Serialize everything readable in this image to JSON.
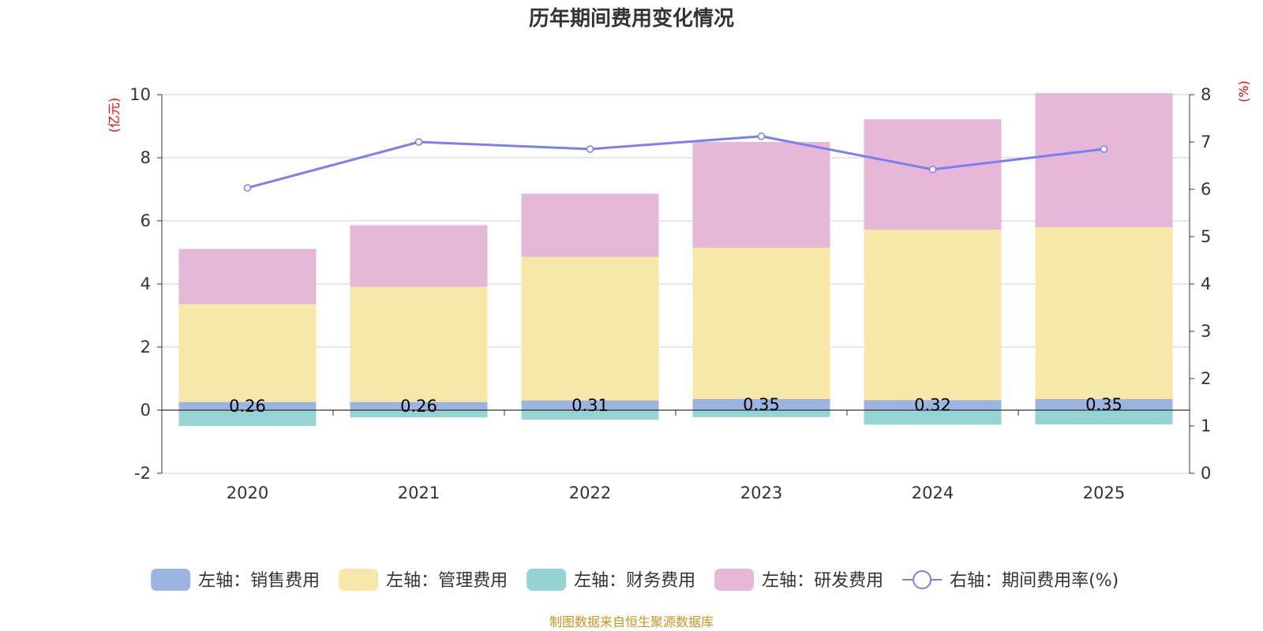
{
  "chart_data": {
    "type": "bar",
    "title": "历年期间费用变化情况",
    "categories": [
      "2020",
      "2021",
      "2022",
      "2023",
      "2024",
      "2025"
    ],
    "left_axis": {
      "unit": "(亿元)",
      "range": [
        -2,
        10
      ],
      "ticks": [
        "-2",
        "0",
        "2",
        "4",
        "6",
        "8",
        "10"
      ]
    },
    "right_axis": {
      "unit": "(%)",
      "range": [
        0,
        8
      ],
      "ticks": [
        "0",
        "1",
        "2",
        "3",
        "4",
        "5",
        "6",
        "7",
        "8"
      ]
    },
    "series": [
      {
        "name": "左轴：销售费用",
        "kind": "bar",
        "axis": "left",
        "color": "#9bb5e0",
        "values": [
          0.26,
          0.26,
          0.31,
          0.35,
          0.32,
          0.35
        ],
        "labels": [
          "0.26",
          "0.26",
          "0.31",
          "0.35",
          "0.32",
          "0.35"
        ]
      },
      {
        "name": "左轴：管理费用",
        "kind": "bar",
        "axis": "left",
        "color": "#f7e7a8",
        "values": [
          3.1,
          3.65,
          4.55,
          4.8,
          5.4,
          5.45
        ]
      },
      {
        "name": "左轴：财务费用",
        "kind": "bar",
        "axis": "left",
        "color": "#96d4d4",
        "values": [
          -0.5,
          -0.23,
          -0.3,
          -0.22,
          -0.46,
          -0.45
        ]
      },
      {
        "name": "左轴：研发费用",
        "kind": "bar",
        "axis": "left",
        "color": "#e6b8d8",
        "values": [
          1.75,
          1.95,
          2.0,
          3.35,
          3.5,
          4.25
        ]
      },
      {
        "name": "右轴：期间费用率(%)",
        "kind": "line",
        "axis": "right",
        "color": "#7b7ff0",
        "values": [
          6.03,
          7.0,
          6.85,
          7.12,
          6.42,
          6.85
        ]
      }
    ],
    "legend_position": "bottom",
    "grid": true
  },
  "footer": {
    "source": "制图数据来自恒生聚源数据库"
  }
}
